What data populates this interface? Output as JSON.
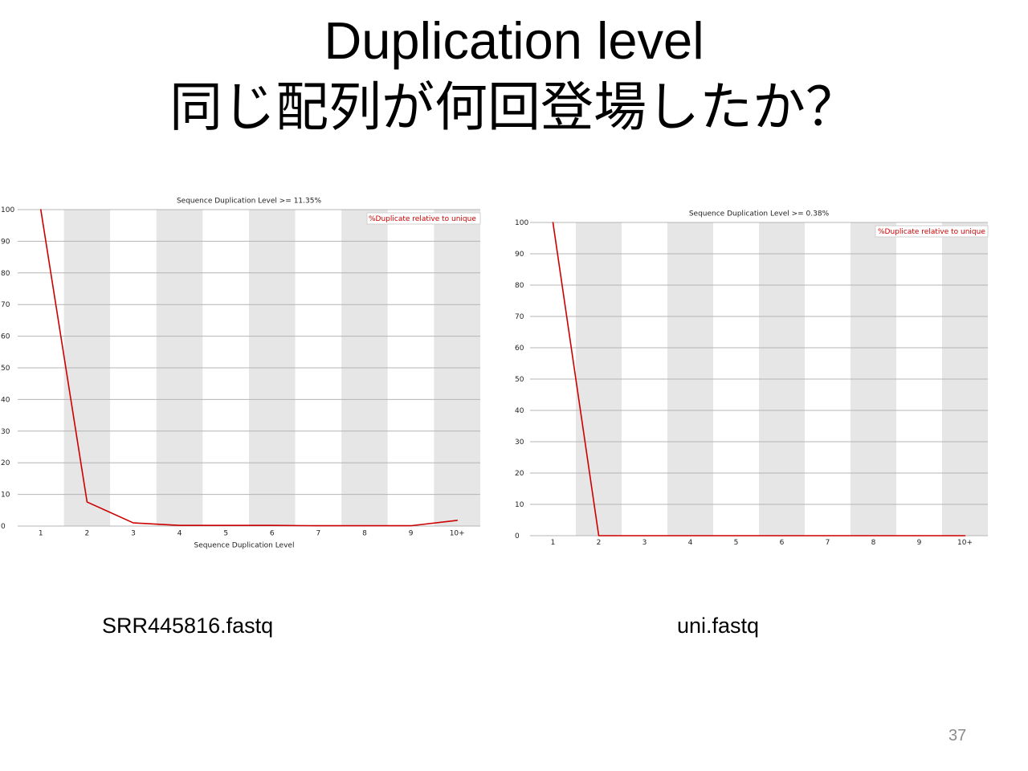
{
  "slide": {
    "title_lines": [
      "Duplication level",
      "同じ配列が何回登場したか？"
    ],
    "captions": [
      "SRR445816.fastq",
      "uni.fastq"
    ],
    "page_number": "37"
  },
  "colors": {
    "legend_text": "#cc0000",
    "band": "#e6e6e6",
    "grid": "#b4b4b4",
    "legend_border": "#d0d0d0",
    "page_number": "#8c8c8c"
  },
  "chart_data": [
    {
      "type": "line",
      "title": "Sequence Duplication Level >= 11.35%",
      "xlabel": "Sequence Duplication Level",
      "categories": [
        "1",
        "2",
        "3",
        "4",
        "5",
        "6",
        "7",
        "8",
        "9",
        "10+"
      ],
      "series": [
        {
          "name": "%Duplicate relative to unique",
          "color": "#cc0000",
          "values": [
            100,
            7.6,
            1.0,
            0.2,
            0.2,
            0.2,
            0.1,
            0.1,
            0.1,
            1.8
          ]
        }
      ],
      "ylim": [
        0,
        100
      ],
      "yticks": [
        0,
        10,
        20,
        30,
        40,
        50,
        60,
        70,
        80,
        90,
        100
      ],
      "grid": true,
      "legend": "top-right"
    },
    {
      "type": "line",
      "title": "Sequence Duplication Level >= 0.38%",
      "xlabel": "",
      "categories": [
        "1",
        "2",
        "3",
        "4",
        "5",
        "6",
        "7",
        "8",
        "9",
        "10+"
      ],
      "series": [
        {
          "name": "%Duplicate relative to unique",
          "color": "#cc0000",
          "values": [
            100,
            0,
            0,
            0,
            0,
            0,
            0,
            0,
            0,
            0
          ]
        }
      ],
      "ylim": [
        0,
        100
      ],
      "yticks": [
        0,
        10,
        20,
        30,
        40,
        50,
        60,
        70,
        80,
        90,
        100
      ],
      "grid": true,
      "legend": "top-right"
    }
  ]
}
